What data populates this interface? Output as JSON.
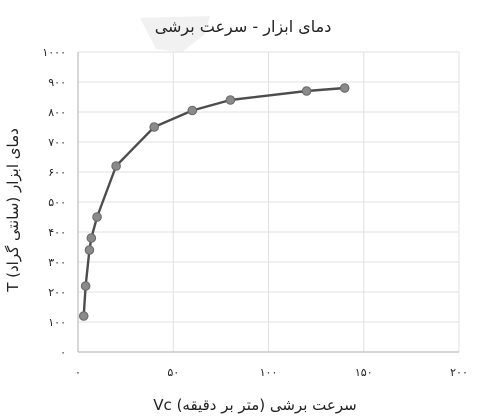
{
  "chart_data": {
    "type": "line",
    "title": "دمای ابزار - سرعت برشی",
    "xlabel": "Vc سرعت برشی (متر بر دقیقه)",
    "ylabel": "T دمای ابزار (سانتی گراد)",
    "xlim": [
      0,
      200
    ],
    "ylim": [
      0,
      1000
    ],
    "grid": true,
    "xticks": [
      {
        "value": 0,
        "label": "۰"
      },
      {
        "value": 50,
        "label": "۵۰"
      },
      {
        "value": 100,
        "label": "۱۰۰"
      },
      {
        "value": 150,
        "label": "۱۵۰"
      },
      {
        "value": 200,
        "label": "۲۰۰"
      }
    ],
    "yticks": [
      {
        "value": 0,
        "label": "۰"
      },
      {
        "value": 100,
        "label": "۱۰۰"
      },
      {
        "value": 200,
        "label": "۲۰۰"
      },
      {
        "value": 300,
        "label": "۳۰۰"
      },
      {
        "value": 400,
        "label": "۴۰۰"
      },
      {
        "value": 500,
        "label": "۵۰۰"
      },
      {
        "value": 600,
        "label": "۶۰۰"
      },
      {
        "value": 700,
        "label": "۷۰۰"
      },
      {
        "value": 800,
        "label": "۸۰۰"
      },
      {
        "value": 900,
        "label": "۹۰۰"
      },
      {
        "value": 1000,
        "label": "۱۰۰۰"
      }
    ],
    "series": [
      {
        "x": [
          3,
          4,
          6,
          7,
          10,
          20,
          40,
          60,
          80,
          120,
          140
        ],
        "y": [
          120,
          220,
          340,
          380,
          450,
          620,
          750,
          805,
          840,
          870,
          880
        ]
      }
    ]
  },
  "colors": {
    "axis": "#bdbdbd",
    "grid": "#e0e0e0",
    "line": "#4d4d4d",
    "marker": "#8a8a8a",
    "marker_stroke": "#666666",
    "text": "#222222"
  }
}
